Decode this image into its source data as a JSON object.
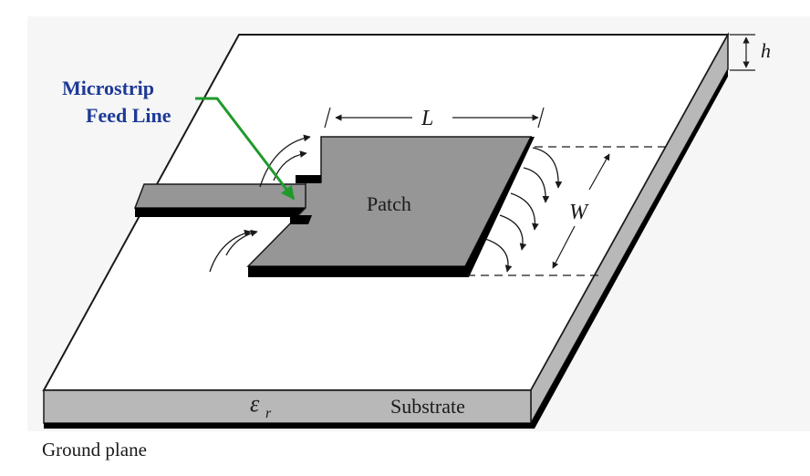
{
  "labels": {
    "feed_line_line1": "Microstrip",
    "feed_line_line2": "Feed Line",
    "length": "L",
    "width": "W",
    "height": "h",
    "patch": "Patch",
    "permittivity_symbol": "ε",
    "permittivity_subscript": "r",
    "substrate": "Substrate",
    "ground_plane": "Ground plane"
  },
  "colors": {
    "background": "#ffffff",
    "substrate_top": "#ffffff",
    "substrate_edge": "#b8b8b8",
    "metal": "#969696",
    "ground": "#000000",
    "outline": "#1a1a1a",
    "feed_label": "#1e3a96",
    "feed_arrow": "#1f9a2b"
  }
}
